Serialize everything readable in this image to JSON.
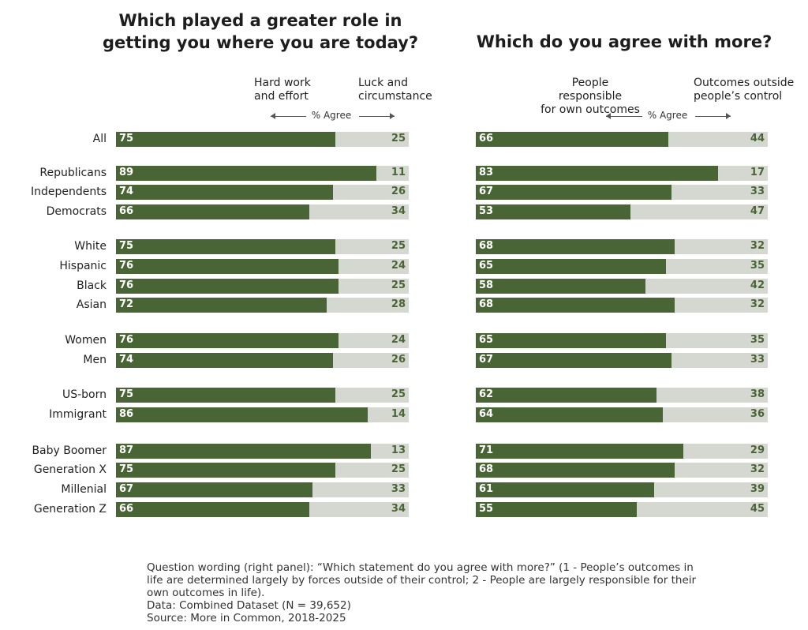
{
  "chart_data": [
    {
      "type": "bar",
      "title": "Which played a greater role in\ngetting you where you are today?",
      "axis_label": "% Agree",
      "categories": [
        "All",
        "Republicans",
        "Independents",
        "Democrats",
        "White",
        "Hispanic",
        "Black",
        "Asian",
        "Women",
        "Men",
        "US-born",
        "Immigrant",
        "Baby Boomer",
        "Generation X",
        "Millenial",
        "Generation Z"
      ],
      "series": [
        {
          "name": "Hard work\nand effort",
          "color": "#4a6535",
          "values": [
            75,
            89,
            74,
            66,
            75,
            76,
            76,
            72,
            76,
            74,
            75,
            86,
            87,
            75,
            67,
            66
          ]
        },
        {
          "name": "Luck and\ncircumstance",
          "color": "#d5d7d1",
          "values": [
            25,
            11,
            26,
            34,
            25,
            24,
            25,
            28,
            24,
            26,
            25,
            14,
            13,
            25,
            33,
            34
          ]
        }
      ],
      "xlim": [
        0,
        100
      ]
    },
    {
      "type": "bar",
      "title": "Which do you agree with more?",
      "axis_label": "% Agree",
      "series": [
        {
          "name": "People responsible\nfor own outcomes",
          "color": "#4a6535",
          "values": [
            66,
            83,
            67,
            53,
            68,
            65,
            58,
            68,
            65,
            67,
            62,
            64,
            71,
            68,
            61,
            55
          ]
        },
        {
          "name": "Outcomes outside\npeople’s control",
          "color": "#d5d7d1",
          "values": [
            44,
            17,
            33,
            47,
            32,
            35,
            42,
            32,
            35,
            33,
            38,
            36,
            29,
            32,
            39,
            45
          ]
        }
      ],
      "xlim": [
        0,
        100
      ]
    }
  ],
  "notes": "Question wording (right panel): “Which statement do you agree with more?” (1 - People’s outcomes in\nlife are determined largely by forces outside of their control; 2 - People are largely responsible for their\nown outcomes in life).\nData: Combined Dataset (N = 39,652)\nSource: More in Common, 2018-2025"
}
